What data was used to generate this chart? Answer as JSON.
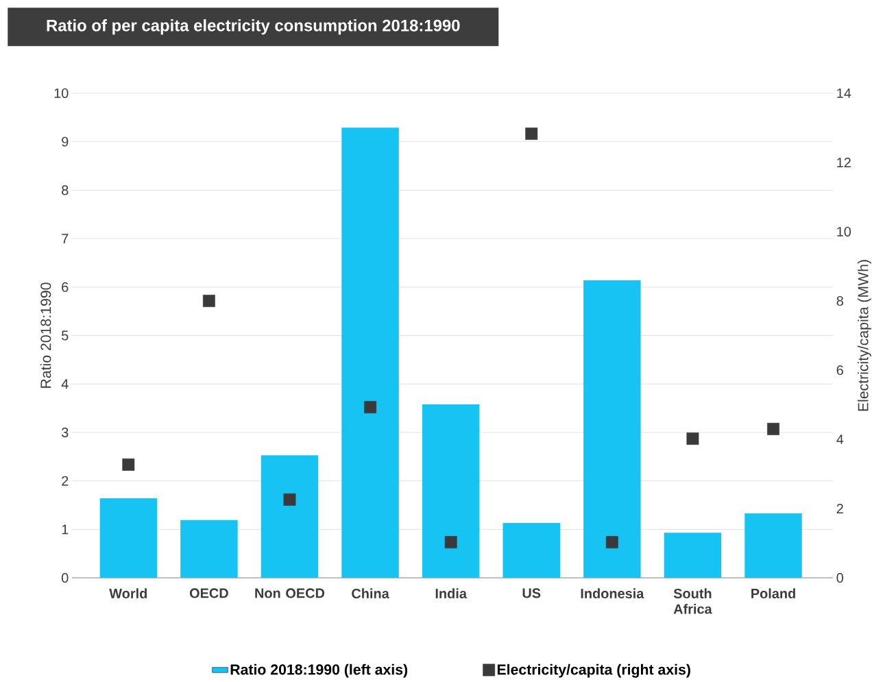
{
  "chart_data": {
    "type": "bar",
    "title": "Ratio of per capita electricity consumption 2018:1990",
    "categories": [
      "World",
      "OECD",
      "Non OECD",
      "China",
      "India",
      "US",
      "Indonesia",
      "South Africa",
      "Poland"
    ],
    "series": [
      {
        "name": "Ratio 2018:1990 (left axis)",
        "color": "#17c3f2",
        "values": [
          1.64,
          1.19,
          2.53,
          9.29,
          3.58,
          1.13,
          6.14,
          0.93,
          1.33
        ]
      },
      {
        "name": "Electricity/capita (right axis)",
        "type": "scatter",
        "axis": "y2",
        "color": "#3a3a3a",
        "marker": "square",
        "values": [
          3.27,
          8.0,
          2.26,
          4.93,
          1.03,
          12.83,
          1.03,
          4.02,
          4.3
        ]
      }
    ],
    "ylabel": "Ratio 2018:1990",
    "y2label": "Electricity/capita (MWh)",
    "ylim": [
      0,
      10
    ],
    "yticks": [
      0,
      1,
      2,
      3,
      4,
      5,
      6,
      7,
      8,
      9,
      10
    ],
    "y2lim": [
      0,
      14
    ],
    "y2ticks": [
      0,
      2,
      4,
      6,
      8,
      10,
      12,
      14
    ],
    "grid": "y",
    "legend": "bottom"
  }
}
